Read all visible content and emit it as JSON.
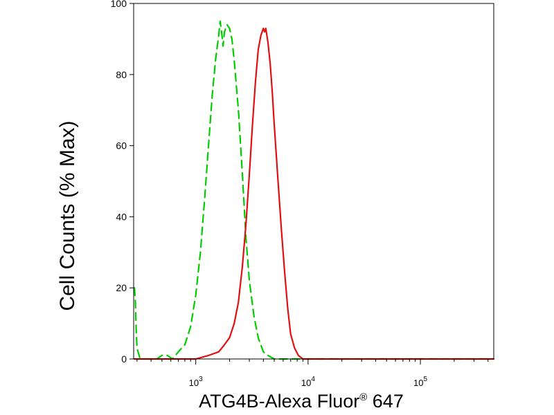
{
  "chart_data": {
    "type": "line",
    "title": "",
    "xlabel": "ATG4B-Alexa Fluor",
    "xlabel_sup": "®",
    "xlabel_suffix": " 647",
    "ylabel": "Cell Counts (% Max)",
    "x_scale": "log",
    "xlim": [
      280,
      450000
    ],
    "ylim": [
      0,
      100
    ],
    "y_ticks": [
      0,
      20,
      40,
      60,
      80,
      100
    ],
    "x_ticks": [
      {
        "value": 1000,
        "base": "10",
        "exp": "3"
      },
      {
        "value": 10000,
        "base": "10",
        "exp": "4"
      },
      {
        "value": 100000,
        "base": "10",
        "exp": "5"
      }
    ],
    "grid": false,
    "legend": "none",
    "series": [
      {
        "color": "#00cc00",
        "style": "dashed",
        "x": [
          285,
          290,
          295,
          300,
          320,
          350,
          400,
          450,
          500,
          560,
          620,
          700,
          800,
          900,
          1000,
          1100,
          1200,
          1300,
          1400,
          1500,
          1600,
          1650,
          1700,
          1750,
          1800,
          1900,
          2000,
          2100,
          2200,
          2400,
          2600,
          2800,
          3000,
          3300,
          3600,
          4000,
          4400,
          5000,
          6000,
          8000,
          20000,
          450000
        ],
        "y": [
          20,
          16,
          8,
          3,
          0,
          0,
          0,
          0,
          1,
          1,
          0,
          2,
          4,
          9,
          18,
          30,
          45,
          60,
          74,
          84,
          91,
          95,
          92,
          88,
          92,
          94,
          93,
          90,
          84,
          70,
          52,
          34,
          22,
          12,
          6,
          2,
          1,
          0,
          0,
          0,
          0,
          0
        ]
      },
      {
        "color": "#e01010",
        "style": "solid",
        "x": [
          285,
          1000,
          1300,
          1600,
          1800,
          2000,
          2200,
          2400,
          2600,
          2800,
          3000,
          3200,
          3400,
          3600,
          3800,
          4000,
          4100,
          4200,
          4400,
          4600,
          4800,
          5000,
          5400,
          5800,
          6200,
          6600,
          7000,
          7600,
          8200,
          9000,
          11000,
          450000
        ],
        "y": [
          0,
          0,
          1,
          2,
          4,
          6,
          10,
          16,
          26,
          38,
          52,
          66,
          78,
          87,
          91,
          93,
          92,
          93,
          89,
          83,
          75,
          66,
          50,
          36,
          24,
          14,
          7,
          3,
          1,
          0,
          0,
          0
        ]
      }
    ]
  }
}
